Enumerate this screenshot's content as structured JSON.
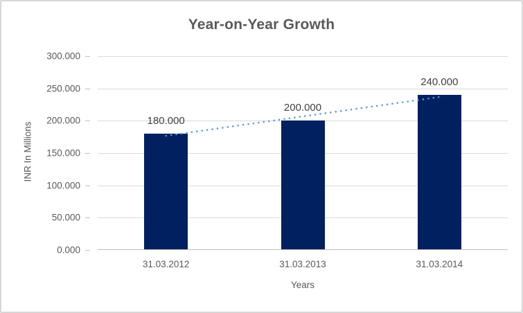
{
  "chart_data": {
    "type": "bar",
    "title": "Year-on-Year Growth",
    "xlabel": "Years",
    "ylabel": "INR In Millions",
    "categories": [
      "31.03.2012",
      "31.03.2013",
      "31.03.2014"
    ],
    "values": [
      180,
      200,
      240
    ],
    "value_labels": [
      "180.000",
      "200.000",
      "240.000"
    ],
    "ylim": [
      0,
      300
    ],
    "ytick_values": [
      0,
      50,
      100,
      150,
      200,
      250,
      300
    ],
    "ytick_labels": [
      "0.000",
      "50.000",
      "100.000",
      "150.000",
      "200.000",
      "250.000",
      "300.000"
    ],
    "grid": true,
    "legend_position": "none",
    "bar_color": "#002060",
    "gridline_color": "#d9d9d9",
    "axis_line_color": "#bfbfbf",
    "text_color": "#595959",
    "value_label_color": "#404040",
    "trendline": {
      "type": "linear",
      "style": "dotted",
      "color": "#5b9bd5",
      "fit_values_at_categories": [
        176.67,
        206.67,
        236.67
      ]
    }
  }
}
